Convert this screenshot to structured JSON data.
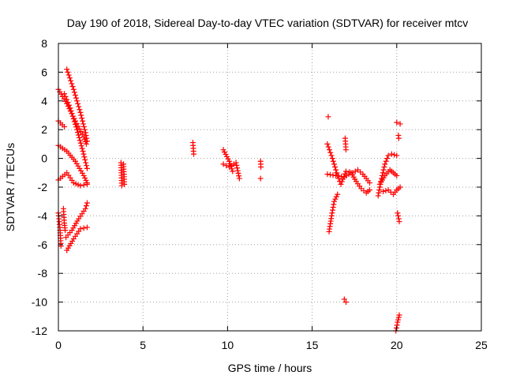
{
  "chart_data": {
    "type": "scatter",
    "title": "Day 190 of 2018, Sidereal Day-to-day VTEC variation (SDTVAR) for receiver mtcv",
    "xlabel": "GPS time / hours",
    "ylabel": "SDTVAR / TECUs",
    "xlim": [
      0,
      25
    ],
    "ylim": [
      -12,
      8
    ],
    "x_ticks": [
      0,
      5,
      10,
      15,
      20,
      25
    ],
    "y_ticks": [
      -12,
      -10,
      -8,
      -6,
      -4,
      -2,
      0,
      2,
      4,
      6,
      8
    ],
    "x_tick_labels": [
      "0",
      "5",
      "10",
      "15",
      "20",
      "25"
    ],
    "y_tick_labels": [
      "-12",
      "-10",
      "-8",
      "-6",
      "-4",
      "-2",
      "0",
      "2",
      "4",
      "6",
      "8"
    ],
    "grid": true,
    "marker": "+",
    "color": "#ff0000",
    "series": [
      {
        "name": "SDTVAR",
        "segments": [
          [
            [
              0.0,
              4.8
            ],
            [
              0.5,
              3.8
            ],
            [
              1.0,
              2.6
            ],
            [
              1.5,
              1.5
            ],
            [
              1.65,
              1.0
            ]
          ],
          [
            [
              0.5,
              6.2
            ],
            [
              0.9,
              4.8
            ],
            [
              1.3,
              3.2
            ],
            [
              1.6,
              1.8
            ],
            [
              1.7,
              1.2
            ]
          ],
          [
            [
              0.35,
              4.5
            ],
            [
              0.7,
              3.5
            ],
            [
              1.1,
              2.0
            ],
            [
              1.45,
              0.5
            ],
            [
              1.7,
              -0.7
            ]
          ],
          [
            [
              0.0,
              2.6
            ],
            [
              0.35,
              2.2
            ]
          ],
          [
            [
              0.0,
              0.9
            ],
            [
              0.5,
              0.5
            ],
            [
              1.0,
              -0.2
            ],
            [
              1.5,
              -1.2
            ],
            [
              1.7,
              -1.7
            ]
          ],
          [
            [
              0.0,
              -1.5
            ],
            [
              0.5,
              -1.0
            ],
            [
              0.9,
              -1.7
            ],
            [
              1.3,
              -1.9
            ],
            [
              1.7,
              -1.8
            ]
          ],
          [
            [
              0.0,
              -3.8
            ],
            [
              0.1,
              -5.0
            ],
            [
              0.15,
              -6.1
            ]
          ],
          [
            [
              0.3,
              -3.5
            ],
            [
              0.35,
              -4.5
            ],
            [
              0.4,
              -5.0
            ]
          ],
          [
            [
              0.45,
              -5.5
            ],
            [
              0.8,
              -5.0
            ],
            [
              1.2,
              -4.2
            ],
            [
              1.6,
              -3.5
            ],
            [
              1.7,
              -3.1
            ]
          ],
          [
            [
              0.5,
              -6.4
            ],
            [
              0.9,
              -5.6
            ],
            [
              1.3,
              -4.9
            ],
            [
              1.7,
              -4.8
            ]
          ],
          [
            [
              3.7,
              -0.3
            ],
            [
              3.72,
              -1.0
            ],
            [
              3.75,
              -1.9
            ]
          ],
          [
            [
              3.85,
              -0.4
            ],
            [
              3.88,
              -1.1
            ],
            [
              3.9,
              -1.8
            ]
          ],
          [
            [
              7.95,
              1.1
            ],
            [
              8.0,
              0.3
            ]
          ],
          [
            [
              9.75,
              0.6
            ],
            [
              10.1,
              -0.2
            ],
            [
              10.3,
              -0.9
            ]
          ],
          [
            [
              9.75,
              -0.4
            ],
            [
              10.1,
              -0.6
            ],
            [
              10.5,
              -0.3
            ],
            [
              10.7,
              -1.4
            ]
          ],
          [
            [
              11.95,
              -0.2
            ],
            [
              11.97,
              -0.6
            ]
          ],
          [
            [
              11.95,
              -1.4
            ]
          ],
          [
            [
              15.95,
              2.9
            ]
          ],
          [
            [
              15.9,
              1.0
            ],
            [
              16.2,
              0.0
            ],
            [
              16.5,
              -1.2
            ],
            [
              16.7,
              -1.8
            ],
            [
              17.0,
              -0.9
            ],
            [
              17.4,
              -1.0
            ],
            [
              17.7,
              -0.8
            ],
            [
              18.0,
              -1.1
            ],
            [
              18.2,
              -1.4
            ],
            [
              18.4,
              -1.7
            ]
          ],
          [
            [
              15.9,
              -1.1
            ],
            [
              16.4,
              -1.2
            ],
            [
              16.9,
              -1.3
            ],
            [
              17.3,
              -1.0
            ],
            [
              17.6,
              -1.6
            ],
            [
              17.9,
              -2.1
            ],
            [
              18.2,
              -2.4
            ],
            [
              18.4,
              -2.2
            ]
          ],
          [
            [
              16.5,
              -2.5
            ],
            [
              16.3,
              -3.0
            ],
            [
              16.15,
              -4.0
            ],
            [
              16.0,
              -5.1
            ]
          ],
          [
            [
              16.95,
              1.4
            ],
            [
              17.0,
              0.6
            ]
          ],
          [
            [
              16.9,
              -9.8
            ],
            [
              17.0,
              -10.0
            ]
          ],
          [
            [
              18.9,
              -2.6
            ],
            [
              19.1,
              -1.4
            ],
            [
              19.3,
              -0.4
            ],
            [
              19.5,
              0.2
            ],
            [
              19.7,
              0.3
            ],
            [
              20.0,
              0.2
            ]
          ],
          [
            [
              19.0,
              -1.8
            ],
            [
              19.3,
              -1.2
            ],
            [
              19.6,
              -0.8
            ],
            [
              19.8,
              -1.0
            ],
            [
              20.0,
              -1.2
            ]
          ],
          [
            [
              19.2,
              -2.3
            ],
            [
              19.5,
              -2.2
            ],
            [
              19.8,
              -2.5
            ],
            [
              20.0,
              -2.2
            ],
            [
              20.2,
              -2.0
            ]
          ],
          [
            [
              20.0,
              2.5
            ],
            [
              20.2,
              2.4
            ]
          ],
          [
            [
              20.1,
              1.6
            ],
            [
              20.12,
              1.4
            ]
          ],
          [
            [
              20.05,
              -3.8
            ],
            [
              20.15,
              -4.4
            ]
          ],
          [
            [
              19.95,
              -12.0
            ],
            [
              20.05,
              -11.4
            ],
            [
              20.15,
              -10.9
            ]
          ]
        ]
      }
    ]
  }
}
